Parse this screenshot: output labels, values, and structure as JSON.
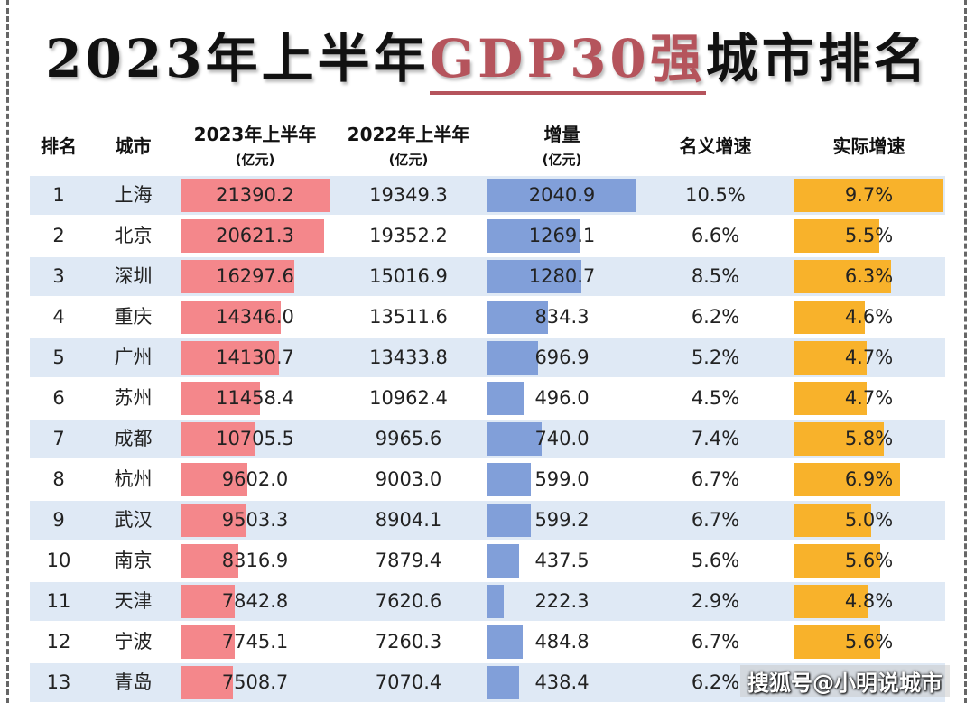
{
  "title_pre": "2023年上半年",
  "title_hl": "GDP30强",
  "title_post": "城市排名",
  "watermark": "搜狐号@小明说城市",
  "colors": {
    "gdp2023_bar": "#f4878b",
    "increase_bar": "#819fd9",
    "real_growth_bar": "#f8b22b",
    "odd_row": "#dfe9f5"
  },
  "chart_data": {
    "type": "table",
    "columns": [
      {
        "label": "排名",
        "unit": ""
      },
      {
        "label": "城市",
        "unit": ""
      },
      {
        "label": "2023年上半年",
        "unit": "(亿元)"
      },
      {
        "label": "2022年上半年",
        "unit": "(亿元)"
      },
      {
        "label": "增量",
        "unit": "(亿元)"
      },
      {
        "label": "名义增速",
        "unit": ""
      },
      {
        "label": "实际增速",
        "unit": ""
      }
    ],
    "rows": [
      [
        "1",
        "上海",
        "21390.2",
        "19349.3",
        "2040.9",
        "10.5%",
        "9.7%"
      ],
      [
        "2",
        "北京",
        "20621.3",
        "19352.2",
        "1269.1",
        "6.6%",
        "5.5%"
      ],
      [
        "3",
        "深圳",
        "16297.6",
        "15016.9",
        "1280.7",
        "8.5%",
        "6.3%"
      ],
      [
        "4",
        "重庆",
        "14346.0",
        "13511.6",
        "834.3",
        "6.2%",
        "4.6%"
      ],
      [
        "5",
        "广州",
        "14130.7",
        "13433.8",
        "696.9",
        "5.2%",
        "4.7%"
      ],
      [
        "6",
        "苏州",
        "11458.4",
        "10962.4",
        "496.0",
        "4.5%",
        "4.7%"
      ],
      [
        "7",
        "成都",
        "10705.5",
        "9965.6",
        "740.0",
        "7.4%",
        "5.8%"
      ],
      [
        "8",
        "杭州",
        "9602.0",
        "9003.0",
        "599.0",
        "6.7%",
        "6.9%"
      ],
      [
        "9",
        "武汉",
        "9503.3",
        "8904.1",
        "599.2",
        "6.7%",
        "5.0%"
      ],
      [
        "10",
        "南京",
        "8316.9",
        "7879.4",
        "437.5",
        "5.6%",
        "5.6%"
      ],
      [
        "11",
        "天津",
        "7842.8",
        "7620.6",
        "222.3",
        "2.9%",
        "4.8%"
      ],
      [
        "12",
        "宁波",
        "7745.1",
        "7260.3",
        "484.8",
        "6.7%",
        "5.6%"
      ],
      [
        "13",
        "青岛",
        "7508.7",
        "7070.4",
        "438.4",
        "6.2%",
        ""
      ]
    ]
  }
}
